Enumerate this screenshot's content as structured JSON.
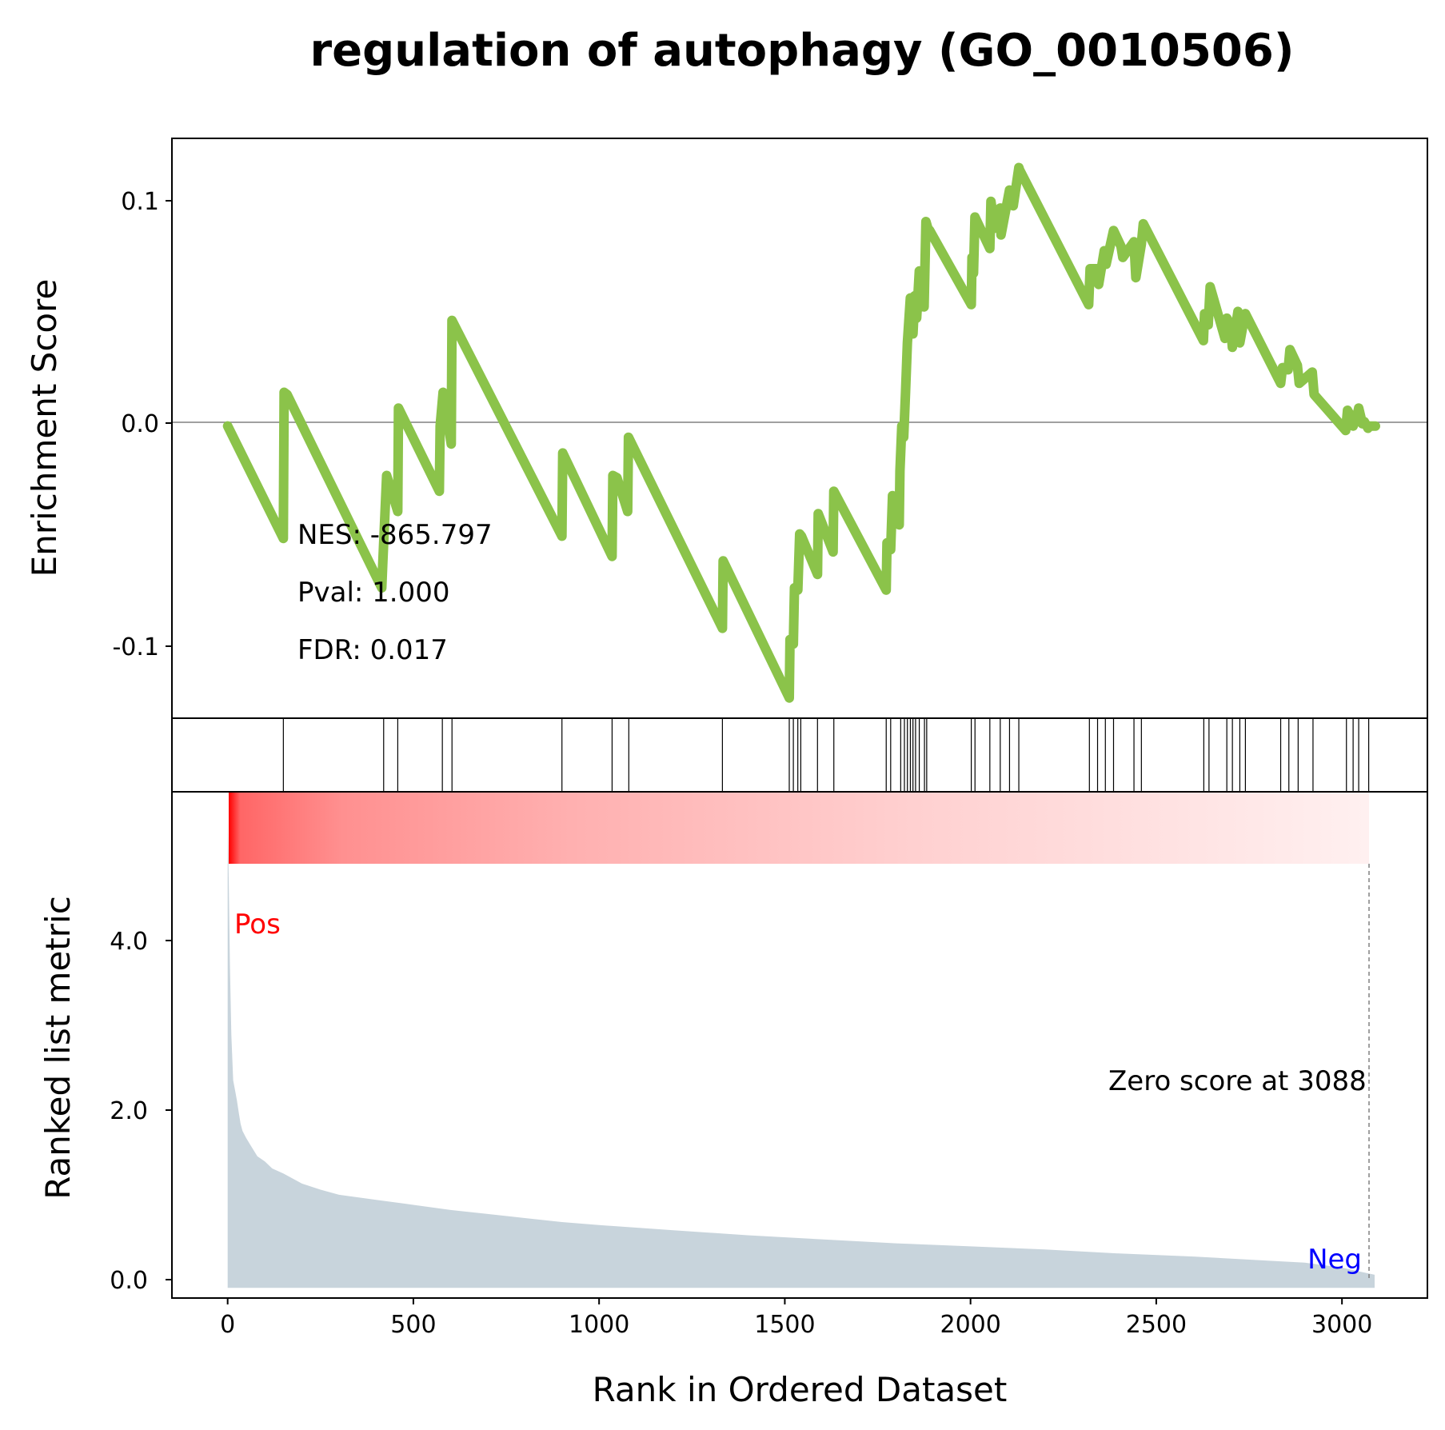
{
  "chart_data": {
    "type": "line",
    "title": "regulation of autophagy (GO_0010506)",
    "xlabel": "Rank in Ordered Dataset",
    "xlim": [
      -150,
      3230
    ],
    "x_ticks": [
      0,
      500,
      1000,
      1500,
      2000,
      2500,
      3000
    ],
    "enrichment": {
      "ylabel": "Enrichment Score",
      "ylim": [
        -0.13,
        0.128
      ],
      "y_ticks": [
        0.1,
        0.0,
        -0.1
      ],
      "y_tick_labels": [
        "0.1",
        "0.0",
        "-0.1"
      ],
      "line_color": "#8bc34a",
      "zero_line": 0.0,
      "es_curve": {
        "x": [
          0,
          150,
          152,
          160,
          415,
          418,
          428,
          458,
          460,
          570,
          572,
          580,
          602,
          604,
          900,
          902,
          1035,
          1037,
          1048,
          1077,
          1079,
          1332,
          1334,
          1512,
          1514,
          1523,
          1526,
          1535,
          1540,
          1545,
          1588,
          1590,
          1630,
          1632,
          1773,
          1775,
          1785,
          1790,
          1795,
          1808,
          1810,
          1815,
          1820,
          1825,
          1830,
          1838,
          1845,
          1850,
          1855,
          1862,
          1875,
          1880,
          1885,
          1890,
          2002,
          2004,
          2008,
          2012,
          2052,
          2055,
          2065,
          2080,
          2082,
          2105,
          2108,
          2115,
          2130,
          2132,
          2318,
          2322,
          2340,
          2345,
          2360,
          2365,
          2385,
          2405,
          2410,
          2440,
          2445,
          2460,
          2465,
          2627,
          2630,
          2640,
          2645,
          2685,
          2690,
          2700,
          2705,
          2720,
          2725,
          2736,
          2740,
          2835,
          2840,
          2855,
          2860,
          2880,
          2885,
          2920,
          2925,
          3010,
          3015,
          3025,
          3030,
          3040,
          3045,
          3055,
          3060,
          3070,
          3075,
          3090
        ],
        "y": [
          0.0,
          -0.05,
          0.015,
          0.014,
          -0.072,
          -0.06,
          -0.022,
          -0.038,
          0.008,
          -0.029,
          0.0,
          0.015,
          -0.008,
          0.047,
          -0.049,
          -0.012,
          -0.058,
          -0.022,
          -0.023,
          -0.038,
          -0.005,
          -0.09,
          -0.06,
          -0.121,
          -0.095,
          -0.097,
          -0.072,
          -0.073,
          -0.048,
          -0.049,
          -0.066,
          -0.039,
          -0.056,
          -0.029,
          -0.073,
          -0.052,
          -0.055,
          -0.031,
          -0.032,
          -0.044,
          -0.02,
          0.0,
          -0.005,
          0.015,
          0.037,
          0.057,
          0.041,
          0.058,
          0.048,
          0.069,
          0.053,
          0.091,
          0.088,
          0.087,
          0.054,
          0.075,
          0.068,
          0.093,
          0.079,
          0.1,
          0.088,
          0.097,
          0.085,
          0.105,
          0.1,
          0.098,
          0.115,
          0.114,
          0.054,
          0.07,
          0.07,
          0.063,
          0.078,
          0.072,
          0.087,
          0.08,
          0.075,
          0.082,
          0.066,
          0.081,
          0.09,
          0.038,
          0.05,
          0.045,
          0.062,
          0.039,
          0.048,
          0.045,
          0.035,
          0.051,
          0.037,
          0.047,
          0.05,
          0.019,
          0.026,
          0.025,
          0.034,
          0.027,
          0.019,
          0.024,
          0.014,
          -0.002,
          0.007,
          0.004,
          0.0,
          0.004,
          0.008,
          0.001,
          0.002,
          -0.001,
          0.0,
          0.0
        ]
      },
      "annotations": {
        "nes": "NES: -865.797",
        "pval": "Pval: 1.000",
        "fdr": "FDR: 0.017"
      }
    },
    "hits": {
      "positions": [
        150,
        420,
        458,
        578,
        604,
        900,
        1035,
        1080,
        1332,
        1512,
        1523,
        1535,
        1543,
        1588,
        1632,
        1773,
        1785,
        1812,
        1822,
        1830,
        1838,
        1845,
        1852,
        1862,
        1876,
        1882,
        2002,
        2012,
        2052,
        2080,
        2105,
        2130,
        2320,
        2342,
        2363,
        2385,
        2440,
        2460,
        2628,
        2642,
        2690,
        2705,
        2725,
        2740,
        2835,
        2857,
        2882,
        2922,
        3012,
        3030,
        3045,
        3072
      ]
    },
    "ranked_metric": {
      "ylabel": "Ranked list metric",
      "ylim": [
        -0.1,
        4.9
      ],
      "y_ticks": [
        4.0,
        2.0,
        0.0
      ],
      "y_tick_labels": [
        "4.0",
        "2.0",
        "0.0"
      ],
      "fill_color": "#c8d4dc",
      "x": [
        0,
        3,
        6,
        10,
        15,
        20,
        25,
        30,
        35,
        40,
        50,
        60,
        70,
        80,
        100,
        120,
        150,
        200,
        250,
        300,
        400,
        500,
        600,
        700,
        800,
        900,
        1000,
        1200,
        1400,
        1600,
        1800,
        2000,
        2200,
        2400,
        2600,
        2800,
        2900,
        3000,
        3050,
        3088
      ],
      "y": [
        4.62,
        4.0,
        3.2,
        2.5,
        2.05,
        1.95,
        1.85,
        1.73,
        1.62,
        1.55,
        1.48,
        1.42,
        1.36,
        1.3,
        1.25,
        1.18,
        1.13,
        1.03,
        0.97,
        0.92,
        0.87,
        0.82,
        0.77,
        0.73,
        0.69,
        0.65,
        0.62,
        0.57,
        0.52,
        0.48,
        0.44,
        0.41,
        0.38,
        0.34,
        0.31,
        0.27,
        0.25,
        0.2,
        0.16,
        0.13
      ]
    },
    "gradient_bar": {
      "start_color": "#ff0000",
      "end_color": "#ffffff"
    },
    "labels": {
      "pos": "Pos",
      "neg": "Neg",
      "zero_score": "Zero score at 3088",
      "zero_x": 3088
    },
    "colors": {
      "pos_label": "#ff0000",
      "neg_label": "#0000ff",
      "zero_line": "#808080"
    }
  }
}
